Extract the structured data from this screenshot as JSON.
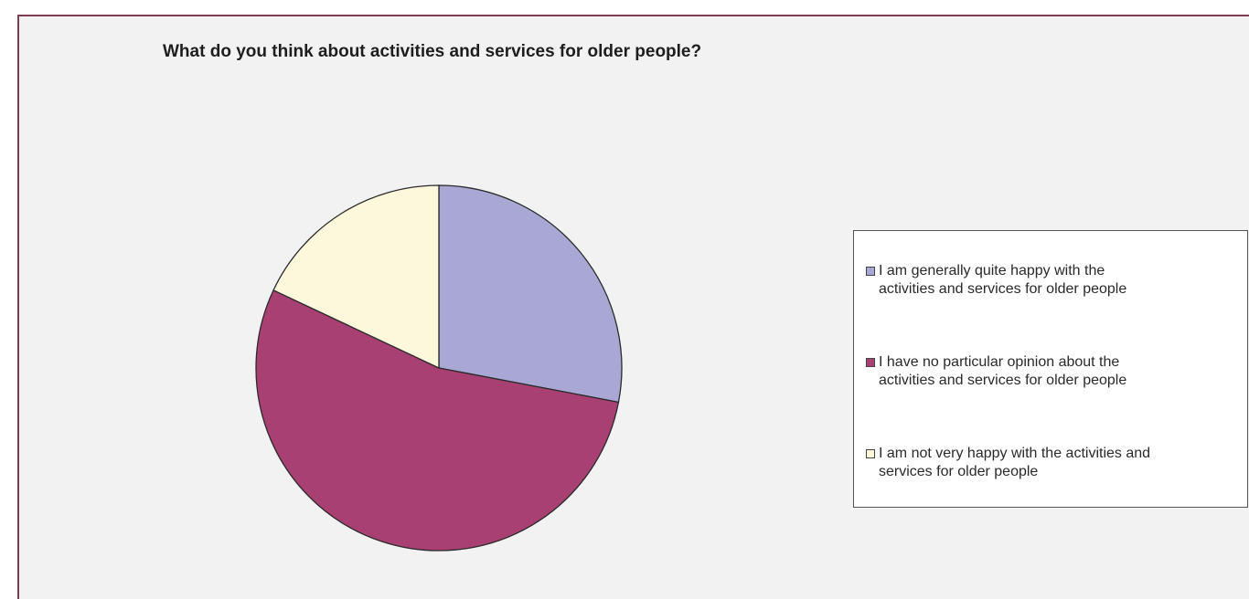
{
  "chart_data": {
    "type": "pie",
    "title": "What do you think about activities and services for older people?",
    "categories": [
      "I am generally quite happy with the activities and services for older people",
      "I have no particular opinion about the activities and services for older people",
      "I am not very happy with the activities and services for  older people"
    ],
    "values": [
      28,
      54,
      18
    ],
    "colors": [
      "#a9a7d4",
      "#a84073",
      "#fdf7dc"
    ],
    "start_angle_deg": 0,
    "direction": "clockwise",
    "legend_position": "right",
    "legend_lines": [
      [
        "I am generally quite happy with the",
        "activities and services for older people"
      ],
      [
        "I have no particular opinion about the",
        "activities and services for older people"
      ],
      [
        "I am not very happy with the activities and",
        "services for  older people"
      ]
    ]
  }
}
